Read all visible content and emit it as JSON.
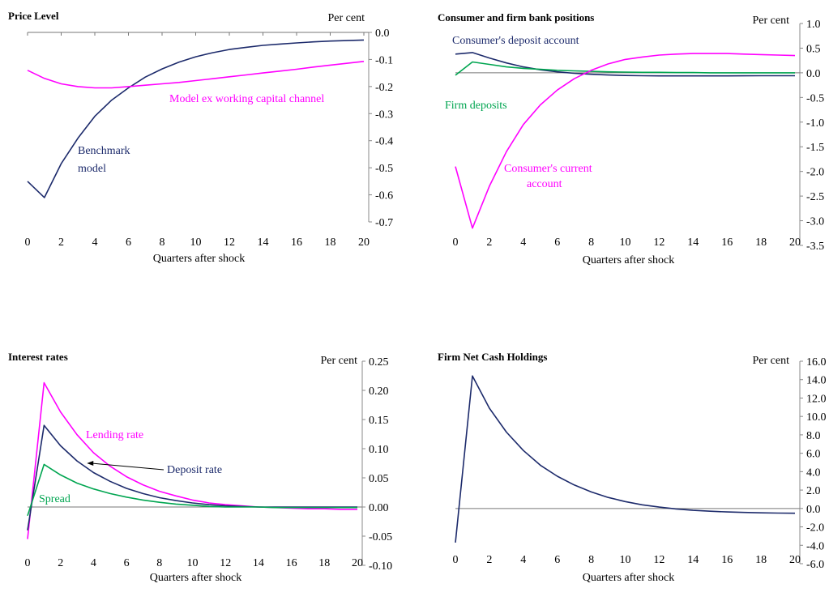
{
  "chart_data": [
    {
      "type": "line",
      "title": "Price Level",
      "unit": "Per cent",
      "xlabel": "Quarters after shock",
      "xlim": [
        0,
        20
      ],
      "xticks": [
        "0",
        "2",
        "4",
        "6",
        "8",
        "10",
        "12",
        "14",
        "16",
        "18",
        "20"
      ],
      "ylim": [
        -0.7,
        0.0
      ],
      "yticks": [
        "0.0",
        "-0.1",
        "-0.2",
        "-0.3",
        "-0.4",
        "-0.5",
        "-0.6",
        "-0.7"
      ],
      "x": [
        0,
        1,
        2,
        3,
        4,
        5,
        6,
        7,
        8,
        9,
        10,
        11,
        12,
        13,
        14,
        15,
        16,
        17,
        18,
        20
      ],
      "series": [
        {
          "name": "Benchmark model",
          "color": "#1c2a6b",
          "values": [
            -0.55,
            -0.61,
            -0.485,
            -0.39,
            -0.31,
            -0.25,
            -0.205,
            -0.165,
            -0.135,
            -0.11,
            -0.09,
            -0.075,
            -0.063,
            -0.055,
            -0.048,
            -0.043,
            -0.039,
            -0.035,
            -0.032,
            -0.028
          ]
        },
        {
          "name": "Model ex working capital channel",
          "color": "#ff00ff",
          "values": [
            -0.14,
            -0.17,
            -0.19,
            -0.2,
            -0.205,
            -0.205,
            -0.2,
            -0.195,
            -0.19,
            -0.185,
            -0.178,
            -0.171,
            -0.164,
            -0.157,
            -0.15,
            -0.143,
            -0.136,
            -0.128,
            -0.121,
            -0.107
          ]
        }
      ],
      "annotations": [
        "Benchmark",
        "model",
        "Model ex working capital channel"
      ]
    },
    {
      "type": "line",
      "title": "Consumer and firm bank positions",
      "unit": "Per cent",
      "xlabel": "Quarters after shock",
      "xlim": [
        0,
        20
      ],
      "xticks": [
        "0",
        "2",
        "4",
        "6",
        "8",
        "10",
        "12",
        "14",
        "16",
        "18",
        "20"
      ],
      "ylim": [
        -3.5,
        1.0
      ],
      "yticks": [
        "1.0",
        "0.5",
        "0.0",
        "-0.5",
        "-1.0",
        "-1.5",
        "-2.0",
        "-2.5",
        "-3.0",
        "-3.5"
      ],
      "x": [
        0,
        1,
        2,
        3,
        4,
        5,
        6,
        7,
        8,
        9,
        10,
        11,
        12,
        13,
        14,
        15,
        16,
        17,
        18,
        19,
        20
      ],
      "series": [
        {
          "name": "Consumer's deposit account",
          "color": "#1c2a6b",
          "values": [
            0.38,
            0.41,
            0.3,
            0.2,
            0.12,
            0.06,
            0.02,
            -0.01,
            -0.03,
            -0.045,
            -0.055,
            -0.06,
            -0.062,
            -0.063,
            -0.063,
            -0.063,
            -0.062,
            -0.061,
            -0.06,
            -0.06,
            -0.06
          ]
        },
        {
          "name": "Firm deposits",
          "color": "#00a550",
          "values": [
            -0.05,
            0.22,
            0.17,
            0.12,
            0.09,
            0.07,
            0.05,
            0.04,
            0.03,
            0.02,
            0.015,
            0.01,
            0.01,
            0.005,
            0.005,
            0.0,
            0.0,
            0.0,
            0.0,
            0.0,
            0.0
          ]
        },
        {
          "name": "Consumer's current account",
          "color": "#ff00ff",
          "values": [
            -1.9,
            -3.15,
            -2.3,
            -1.6,
            -1.05,
            -0.65,
            -0.35,
            -0.12,
            0.05,
            0.18,
            0.27,
            0.32,
            0.36,
            0.38,
            0.39,
            0.39,
            0.39,
            0.38,
            0.37,
            0.36,
            0.35
          ]
        }
      ],
      "annotations": [
        "Consumer's deposit account",
        "Firm deposits",
        "Consumer's current",
        "account"
      ]
    },
    {
      "type": "line",
      "title": "Interest rates",
      "unit": "Per cent",
      "xlabel": "Quarters after shock",
      "xlim": [
        0,
        20
      ],
      "xticks": [
        "0",
        "2",
        "4",
        "6",
        "8",
        "10",
        "12",
        "14",
        "16",
        "18",
        "20"
      ],
      "ylim": [
        -0.1,
        0.25
      ],
      "yticks": [
        "0.25",
        "0.20",
        "0.15",
        "0.10",
        "0.05",
        "0.00",
        "-0.05",
        "-0.10"
      ],
      "x": [
        0,
        1,
        2,
        3,
        4,
        5,
        6,
        7,
        8,
        9,
        10,
        11,
        12,
        13,
        14,
        15,
        16,
        17,
        18,
        19,
        20
      ],
      "series": [
        {
          "name": "Lending rate",
          "color": "#ff00ff",
          "values": [
            -0.055,
            0.213,
            0.163,
            0.124,
            0.093,
            0.07,
            0.052,
            0.038,
            0.027,
            0.019,
            0.012,
            0.007,
            0.004,
            0.002,
            0.0,
            -0.001,
            -0.002,
            -0.003,
            -0.003,
            -0.004,
            -0.004
          ]
        },
        {
          "name": "Deposit rate",
          "color": "#1c2a6b",
          "values": [
            -0.04,
            0.14,
            0.105,
            0.079,
            0.059,
            0.044,
            0.032,
            0.023,
            0.016,
            0.011,
            0.007,
            0.004,
            0.002,
            0.001,
            0.0,
            0.0,
            0.0,
            0.0,
            0.0,
            0.0,
            0.0
          ]
        },
        {
          "name": "Spread",
          "color": "#00a550",
          "values": [
            -0.015,
            0.073,
            0.055,
            0.041,
            0.031,
            0.023,
            0.017,
            0.012,
            0.008,
            0.005,
            0.003,
            0.001,
            0.0,
            0.0,
            0.0,
            -0.001,
            -0.001,
            -0.001,
            -0.001,
            -0.001,
            -0.001
          ]
        }
      ],
      "annotations": [
        "Lending rate",
        "Deposit rate",
        "Spread"
      ]
    },
    {
      "type": "line",
      "title": "Firm Net Cash Holdings",
      "unit": "Per cent",
      "xlabel": "Quarters after shock",
      "xlim": [
        0,
        20
      ],
      "xticks": [
        "0",
        "2",
        "4",
        "6",
        "8",
        "10",
        "12",
        "14",
        "16",
        "18",
        "20"
      ],
      "ylim": [
        -6.0,
        16.0
      ],
      "yticks": [
        "16.0",
        "14.0",
        "12.0",
        "10.0",
        "8.0",
        "6.0",
        "4.0",
        "2.0",
        "0.0",
        "-2.0",
        "-4.0",
        "-6.0"
      ],
      "x": [
        0,
        1,
        2,
        3,
        4,
        5,
        6,
        7,
        8,
        9,
        10,
        11,
        12,
        13,
        14,
        15,
        16,
        17,
        18,
        19,
        20
      ],
      "series": [
        {
          "name": "Firm net cash holdings",
          "color": "#1c2a6b",
          "values": [
            -3.7,
            14.4,
            10.9,
            8.3,
            6.3,
            4.7,
            3.5,
            2.55,
            1.8,
            1.2,
            0.75,
            0.4,
            0.15,
            -0.05,
            -0.2,
            -0.3,
            -0.38,
            -0.43,
            -0.47,
            -0.5,
            -0.52
          ]
        }
      ]
    }
  ]
}
